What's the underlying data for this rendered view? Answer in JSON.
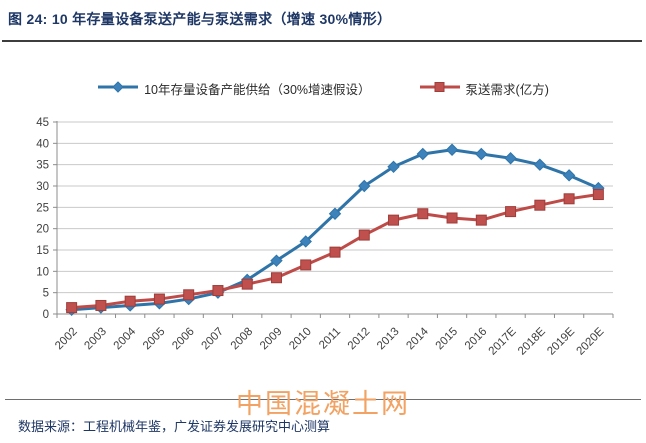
{
  "header": {
    "title": "图 24:  10 年存量设备泵送产能与泵送需求（增速 30%情形）"
  },
  "chart_data": {
    "type": "line",
    "title": "10 年存量设备泵送产能与泵送需求（增速 30%情形）",
    "categories": [
      "2002",
      "2003",
      "2004",
      "2005",
      "2006",
      "2007",
      "2008",
      "2009",
      "2010",
      "2011",
      "2012",
      "2013",
      "2014",
      "2015",
      "2016",
      "2017E",
      "2018E",
      "2019E",
      "2020E"
    ],
    "series": [
      {
        "name": "10年存量设备产能供给（30%增速假设）",
        "marker": "diamond",
        "line_color": "#2e74a8",
        "fill_color": "#3e82bb",
        "values": [
          1,
          1.5,
          2,
          2.5,
          3.5,
          5,
          8,
          12.5,
          17,
          23.5,
          30,
          34.5,
          37.5,
          38.5,
          37.5,
          36.5,
          35,
          32.5,
          29.5
        ]
      },
      {
        "name": "泵送需求(亿方)",
        "marker": "square",
        "line_color": "#be4b48",
        "fill_color": "#c0504d",
        "values": [
          1.5,
          2,
          3,
          3.5,
          4.5,
          5.5,
          7,
          8.5,
          11.5,
          14.5,
          18.5,
          22,
          23.5,
          22.5,
          22,
          24,
          25.5,
          27,
          28
        ]
      }
    ],
    "xlabel": "",
    "ylabel": "",
    "ylim": [
      0,
      45
    ],
    "ytick_step": 5,
    "grid": "horizontal",
    "legend_position": "top",
    "axis_label_color": "#3f3f3f",
    "grid_color": "#c9c9c9",
    "axis_color": "#8c8c8c"
  },
  "watermark": {
    "text": "中国混凝土网",
    "color": "#f2a262"
  },
  "footer": {
    "source": "数据来源：工程机械年鉴，广发证券发展研究中心测算"
  }
}
